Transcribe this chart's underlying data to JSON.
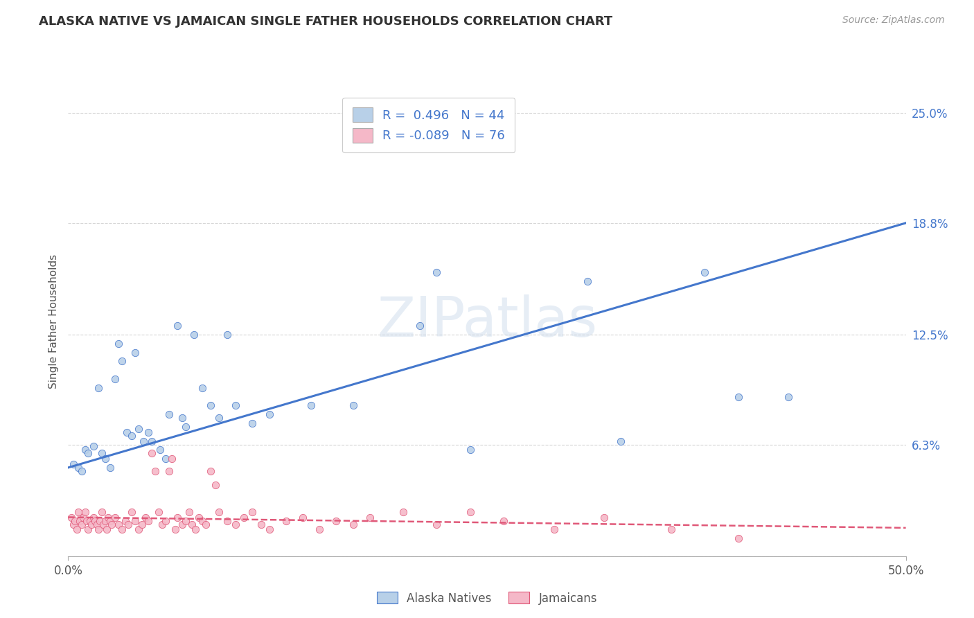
{
  "title": "ALASKA NATIVE VS JAMAICAN SINGLE FATHER HOUSEHOLDS CORRELATION CHART",
  "source": "Source: ZipAtlas.com",
  "ylabel": "Single Father Households",
  "watermark": "ZIPatlas",
  "legend_alaska_r": "R =  0.496",
  "legend_alaska_n": "N = 44",
  "legend_jamaica_r": "R = -0.089",
  "legend_jamaica_n": "N = 76",
  "alaska_color": "#b8d0e8",
  "jamaican_color": "#f5b8c8",
  "alaska_line_color": "#4477cc",
  "jamaican_line_color": "#e05878",
  "background_color": "#ffffff",
  "grid_color": "#cccccc",
  "xlim": [
    0.0,
    0.5
  ],
  "ylim": [
    0.0,
    0.265
  ],
  "ytick_values": [
    0.0,
    0.063,
    0.125,
    0.188,
    0.25
  ],
  "ytick_labels": [
    "",
    "6.3%",
    "12.5%",
    "18.8%",
    "25.0%"
  ],
  "alaska_scatter": [
    [
      0.003,
      0.052
    ],
    [
      0.006,
      0.05
    ],
    [
      0.008,
      0.048
    ],
    [
      0.01,
      0.06
    ],
    [
      0.012,
      0.058
    ],
    [
      0.015,
      0.062
    ],
    [
      0.018,
      0.095
    ],
    [
      0.02,
      0.058
    ],
    [
      0.022,
      0.055
    ],
    [
      0.025,
      0.05
    ],
    [
      0.028,
      0.1
    ],
    [
      0.03,
      0.12
    ],
    [
      0.032,
      0.11
    ],
    [
      0.035,
      0.07
    ],
    [
      0.038,
      0.068
    ],
    [
      0.04,
      0.115
    ],
    [
      0.042,
      0.072
    ],
    [
      0.045,
      0.065
    ],
    [
      0.048,
      0.07
    ],
    [
      0.05,
      0.065
    ],
    [
      0.055,
      0.06
    ],
    [
      0.058,
      0.055
    ],
    [
      0.06,
      0.08
    ],
    [
      0.065,
      0.13
    ],
    [
      0.068,
      0.078
    ],
    [
      0.07,
      0.073
    ],
    [
      0.075,
      0.125
    ],
    [
      0.08,
      0.095
    ],
    [
      0.085,
      0.085
    ],
    [
      0.09,
      0.078
    ],
    [
      0.095,
      0.125
    ],
    [
      0.1,
      0.085
    ],
    [
      0.11,
      0.075
    ],
    [
      0.12,
      0.08
    ],
    [
      0.145,
      0.085
    ],
    [
      0.17,
      0.085
    ],
    [
      0.21,
      0.13
    ],
    [
      0.22,
      0.16
    ],
    [
      0.24,
      0.06
    ],
    [
      0.31,
      0.155
    ],
    [
      0.33,
      0.065
    ],
    [
      0.38,
      0.16
    ],
    [
      0.4,
      0.09
    ],
    [
      0.43,
      0.09
    ]
  ],
  "jamaican_scatter": [
    [
      0.002,
      0.022
    ],
    [
      0.003,
      0.018
    ],
    [
      0.004,
      0.02
    ],
    [
      0.005,
      0.015
    ],
    [
      0.006,
      0.025
    ],
    [
      0.007,
      0.02
    ],
    [
      0.008,
      0.018
    ],
    [
      0.009,
      0.022
    ],
    [
      0.01,
      0.025
    ],
    [
      0.011,
      0.02
    ],
    [
      0.012,
      0.015
    ],
    [
      0.013,
      0.02
    ],
    [
      0.014,
      0.018
    ],
    [
      0.015,
      0.022
    ],
    [
      0.016,
      0.02
    ],
    [
      0.017,
      0.018
    ],
    [
      0.018,
      0.015
    ],
    [
      0.019,
      0.02
    ],
    [
      0.02,
      0.025
    ],
    [
      0.021,
      0.018
    ],
    [
      0.022,
      0.02
    ],
    [
      0.023,
      0.015
    ],
    [
      0.024,
      0.022
    ],
    [
      0.025,
      0.02
    ],
    [
      0.026,
      0.018
    ],
    [
      0.028,
      0.022
    ],
    [
      0.03,
      0.018
    ],
    [
      0.032,
      0.015
    ],
    [
      0.034,
      0.02
    ],
    [
      0.036,
      0.018
    ],
    [
      0.038,
      0.025
    ],
    [
      0.04,
      0.02
    ],
    [
      0.042,
      0.015
    ],
    [
      0.044,
      0.018
    ],
    [
      0.046,
      0.022
    ],
    [
      0.048,
      0.02
    ],
    [
      0.05,
      0.058
    ],
    [
      0.052,
      0.048
    ],
    [
      0.054,
      0.025
    ],
    [
      0.056,
      0.018
    ],
    [
      0.058,
      0.02
    ],
    [
      0.06,
      0.048
    ],
    [
      0.062,
      0.055
    ],
    [
      0.064,
      0.015
    ],
    [
      0.065,
      0.022
    ],
    [
      0.068,
      0.018
    ],
    [
      0.07,
      0.02
    ],
    [
      0.072,
      0.025
    ],
    [
      0.074,
      0.018
    ],
    [
      0.076,
      0.015
    ],
    [
      0.078,
      0.022
    ],
    [
      0.08,
      0.02
    ],
    [
      0.082,
      0.018
    ],
    [
      0.085,
      0.048
    ],
    [
      0.088,
      0.04
    ],
    [
      0.09,
      0.025
    ],
    [
      0.095,
      0.02
    ],
    [
      0.1,
      0.018
    ],
    [
      0.105,
      0.022
    ],
    [
      0.11,
      0.025
    ],
    [
      0.115,
      0.018
    ],
    [
      0.12,
      0.015
    ],
    [
      0.13,
      0.02
    ],
    [
      0.14,
      0.022
    ],
    [
      0.15,
      0.015
    ],
    [
      0.16,
      0.02
    ],
    [
      0.17,
      0.018
    ],
    [
      0.18,
      0.022
    ],
    [
      0.2,
      0.025
    ],
    [
      0.22,
      0.018
    ],
    [
      0.24,
      0.025
    ],
    [
      0.26,
      0.02
    ],
    [
      0.29,
      0.015
    ],
    [
      0.32,
      0.022
    ],
    [
      0.36,
      0.015
    ],
    [
      0.4,
      0.01
    ]
  ],
  "alaska_trendline_x": [
    0.0,
    0.5
  ],
  "alaska_trendline_y": [
    0.05,
    0.188
  ],
  "jamaican_trendline_x": [
    0.0,
    0.5
  ],
  "jamaican_trendline_y": [
    0.022,
    0.016
  ]
}
